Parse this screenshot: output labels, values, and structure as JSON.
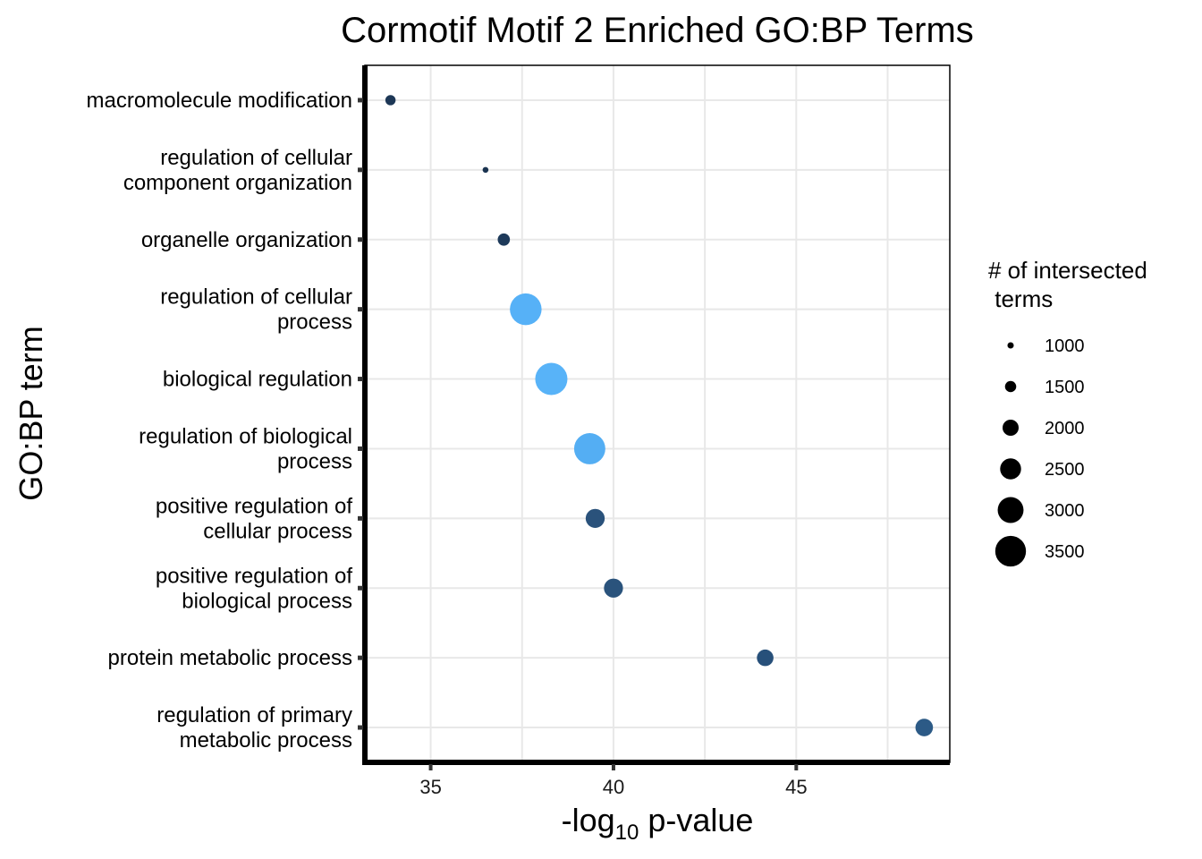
{
  "chart_data": {
    "type": "scatter",
    "title": "Cormotif Motif 2 Enriched GO:BP Terms",
    "xlabel": {
      "prefix": "-log",
      "subscript": "10",
      "suffix": " p-value"
    },
    "ylabel": "GO:BP term",
    "xlim": [
      33.2,
      49.2
    ],
    "xticks": [
      35,
      40,
      45
    ],
    "grid": true,
    "legend": {
      "title": [
        "# of intersected",
        " terms"
      ],
      "position": "right",
      "sizes": [
        1000,
        1500,
        2000,
        2500,
        3000,
        3500
      ]
    },
    "size_range": [
      900,
      3650
    ],
    "color_scale": {
      "low": "#132B43",
      "high": "#56B1F7"
    },
    "terms": [
      {
        "label": [
          "macromolecule modification"
        ],
        "x": 33.9,
        "size": 1400,
        "color": "#1d3756"
      },
      {
        "label": [
          "regulation of cellular",
          "component organization"
        ],
        "x": 36.5,
        "size": 950,
        "color": "#1a3350"
      },
      {
        "label": [
          "organelle organization"
        ],
        "x": 37.0,
        "size": 1600,
        "color": "#1e3a5a"
      },
      {
        "label": [
          "regulation of cellular",
          "process"
        ],
        "x": 37.6,
        "size": 3600,
        "color": "#56b1f7"
      },
      {
        "label": [
          "biological regulation"
        ],
        "x": 38.3,
        "size": 3650,
        "color": "#58b3f8"
      },
      {
        "label": [
          "regulation of biological",
          "process"
        ],
        "x": 39.35,
        "size": 3550,
        "color": "#54aef3"
      },
      {
        "label": [
          "positive regulation of",
          "cellular process"
        ],
        "x": 39.5,
        "size": 2300,
        "color": "#2a527b"
      },
      {
        "label": [
          "positive regulation of",
          "biological process"
        ],
        "x": 40.0,
        "size": 2300,
        "color": "#2a537c"
      },
      {
        "label": [
          "protein metabolic process"
        ],
        "x": 44.15,
        "size": 2050,
        "color": "#27507a"
      },
      {
        "label": [
          "regulation of primary",
          "metabolic process"
        ],
        "x": 48.5,
        "size": 2150,
        "color": "#2c5a86"
      }
    ]
  }
}
